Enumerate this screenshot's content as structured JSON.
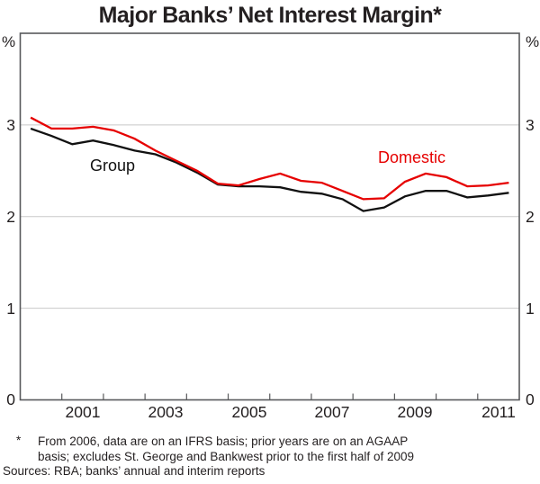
{
  "title": "Major Banks’ Net Interest Margin*",
  "axes": {
    "unit_left": "%",
    "unit_right": "%",
    "y_tick_labels": [
      "3",
      "2",
      "1",
      "0"
    ],
    "x_labels": [
      "2001",
      "2003",
      "2005",
      "2007",
      "2009",
      "2011"
    ]
  },
  "series_labels": {
    "group": "Group",
    "domestic": "Domestic"
  },
  "colors": {
    "domestic": "#e60000",
    "group": "#111111",
    "frame": "#58595b",
    "grid": "#c8c8c8"
  },
  "footnote": {
    "marker": "*",
    "line1": "From 2006, data are on an IFRS basis; prior years are on an AGAAP",
    "line2": "basis; excludes St. George and Bankwest prior to the first half of 2009",
    "sources": "Sources: RBA; banks’ annual and interim reports"
  },
  "chart_data": {
    "type": "line",
    "title": "Major Banks’ Net Interest Margin*",
    "ylabel": "%",
    "frequency": "semiannual",
    "xlim": [
      2000,
      2012
    ],
    "ylim": [
      0,
      4
    ],
    "y_gridlines": [
      1,
      2,
      3
    ],
    "x_ticks": [
      2001,
      2002,
      2003,
      2004,
      2005,
      2006,
      2007,
      2008,
      2009,
      2010,
      2011
    ],
    "x": [
      2000.25,
      2000.75,
      2001.25,
      2001.75,
      2002.25,
      2002.75,
      2003.25,
      2003.75,
      2004.25,
      2004.75,
      2005.25,
      2005.75,
      2006.25,
      2006.75,
      2007.25,
      2007.75,
      2008.25,
      2008.75,
      2009.25,
      2009.75,
      2010.25,
      2010.75,
      2011.25,
      2011.75
    ],
    "series": [
      {
        "name": "Group",
        "color_key": "group",
        "values": [
          2.96,
          2.88,
          2.79,
          2.83,
          2.78,
          2.72,
          2.68,
          2.59,
          2.48,
          2.35,
          2.33,
          2.33,
          2.32,
          2.27,
          2.25,
          2.19,
          2.06,
          2.1,
          2.22,
          2.28,
          2.28,
          2.21,
          2.23,
          2.26
        ]
      },
      {
        "name": "Domestic",
        "color_key": "domestic",
        "values": [
          3.08,
          2.96,
          2.96,
          2.98,
          2.94,
          2.85,
          2.72,
          2.61,
          2.5,
          2.36,
          2.34,
          2.41,
          2.47,
          2.39,
          2.37,
          2.28,
          2.19,
          2.2,
          2.38,
          2.47,
          2.43,
          2.33,
          2.34,
          2.37
        ]
      }
    ],
    "legend_position": "inline-labels",
    "grid": "horizontal-only"
  }
}
